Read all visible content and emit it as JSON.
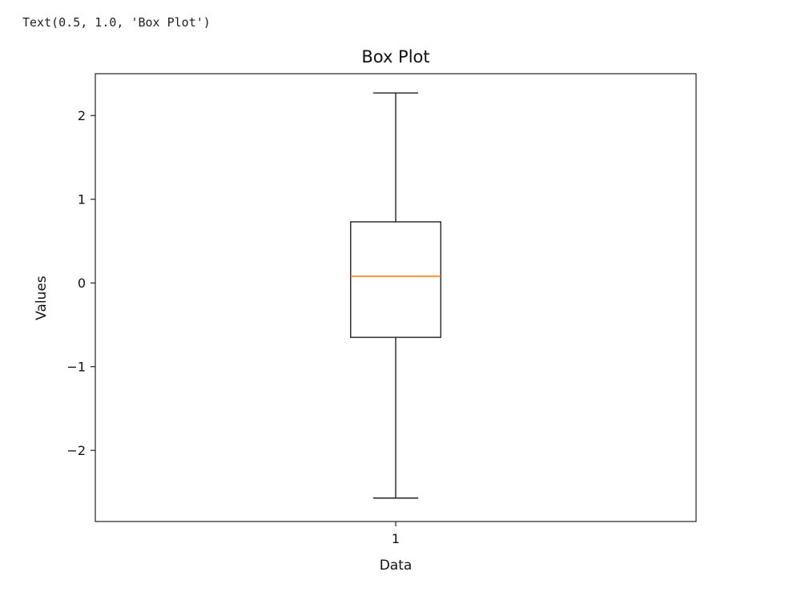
{
  "output": {
    "text": "Text(0.5, 1.0, 'Box Plot')"
  },
  "chart_data": {
    "type": "box",
    "title": "Box Plot",
    "xlabel": "Data",
    "ylabel": "Values",
    "categories": [
      "1"
    ],
    "ylim": [
      -2.85,
      2.5
    ],
    "yticks": [
      {
        "value": 2,
        "label": "2"
      },
      {
        "value": 1,
        "label": "1"
      },
      {
        "value": 0,
        "label": "0"
      },
      {
        "value": -1,
        "label": "−1"
      },
      {
        "value": -2,
        "label": "−2"
      }
    ],
    "boxes": [
      {
        "category": "1",
        "whisker_low": -2.57,
        "q1": -0.65,
        "median": 0.08,
        "q3": 0.73,
        "whisker_high": 2.27
      }
    ],
    "grid": false,
    "colors": {
      "box": "#222222",
      "median": "#ff7f0e",
      "axes": "#222222"
    }
  }
}
